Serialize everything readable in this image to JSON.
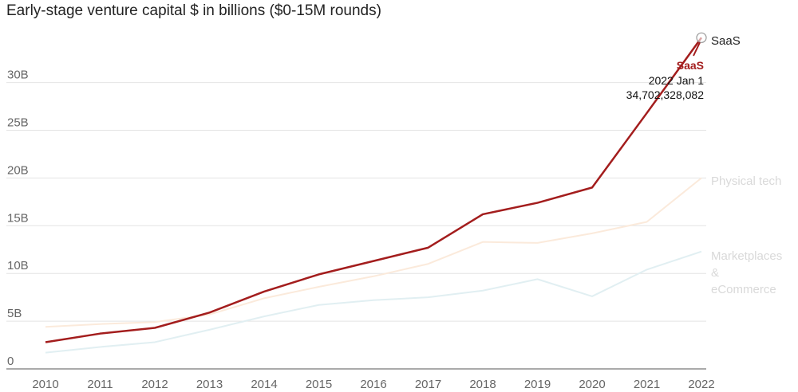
{
  "chart_data": {
    "type": "line",
    "title": "Early-stage venture capital $ in billions ($0-15M rounds)",
    "x": [
      "2010",
      "2011",
      "2012",
      "2013",
      "2014",
      "2015",
      "2016",
      "2017",
      "2018",
      "2019",
      "2020",
      "2021",
      "2022"
    ],
    "ylim": [
      0,
      35
    ],
    "y_ticks": [
      0,
      5,
      10,
      15,
      20,
      25,
      30
    ],
    "y_tick_labels": [
      "0",
      "5B",
      "10B",
      "15B",
      "20B",
      "25B",
      "30B"
    ],
    "grid": true,
    "series": [
      {
        "name": "Marketplaces & eCommerce",
        "label_lines": [
          "Marketplaces",
          "&",
          "eCommerce"
        ],
        "color": "#e1eff2",
        "values": [
          1.7,
          2.3,
          2.8,
          4.1,
          5.5,
          6.7,
          7.2,
          7.5,
          8.2,
          9.4,
          7.6,
          10.4,
          12.3
        ]
      },
      {
        "name": "Physical tech",
        "label_lines": [
          "Physical tech"
        ],
        "color": "#fbeadb",
        "values": [
          4.4,
          4.7,
          4.9,
          5.7,
          7.4,
          8.6,
          9.7,
          11.0,
          13.3,
          13.2,
          14.2,
          15.4,
          20.0
        ]
      },
      {
        "name": "SaaS",
        "label_lines": [
          "SaaS"
        ],
        "color": "#a31d1d",
        "values": [
          2.8,
          3.7,
          4.3,
          5.9,
          8.1,
          9.9,
          11.3,
          12.7,
          16.2,
          17.4,
          19.0,
          26.8,
          34.7
        ]
      }
    ],
    "tooltip": {
      "series": "SaaS",
      "date": "2022 Jan 1",
      "value": "34,702,328,082"
    }
  }
}
